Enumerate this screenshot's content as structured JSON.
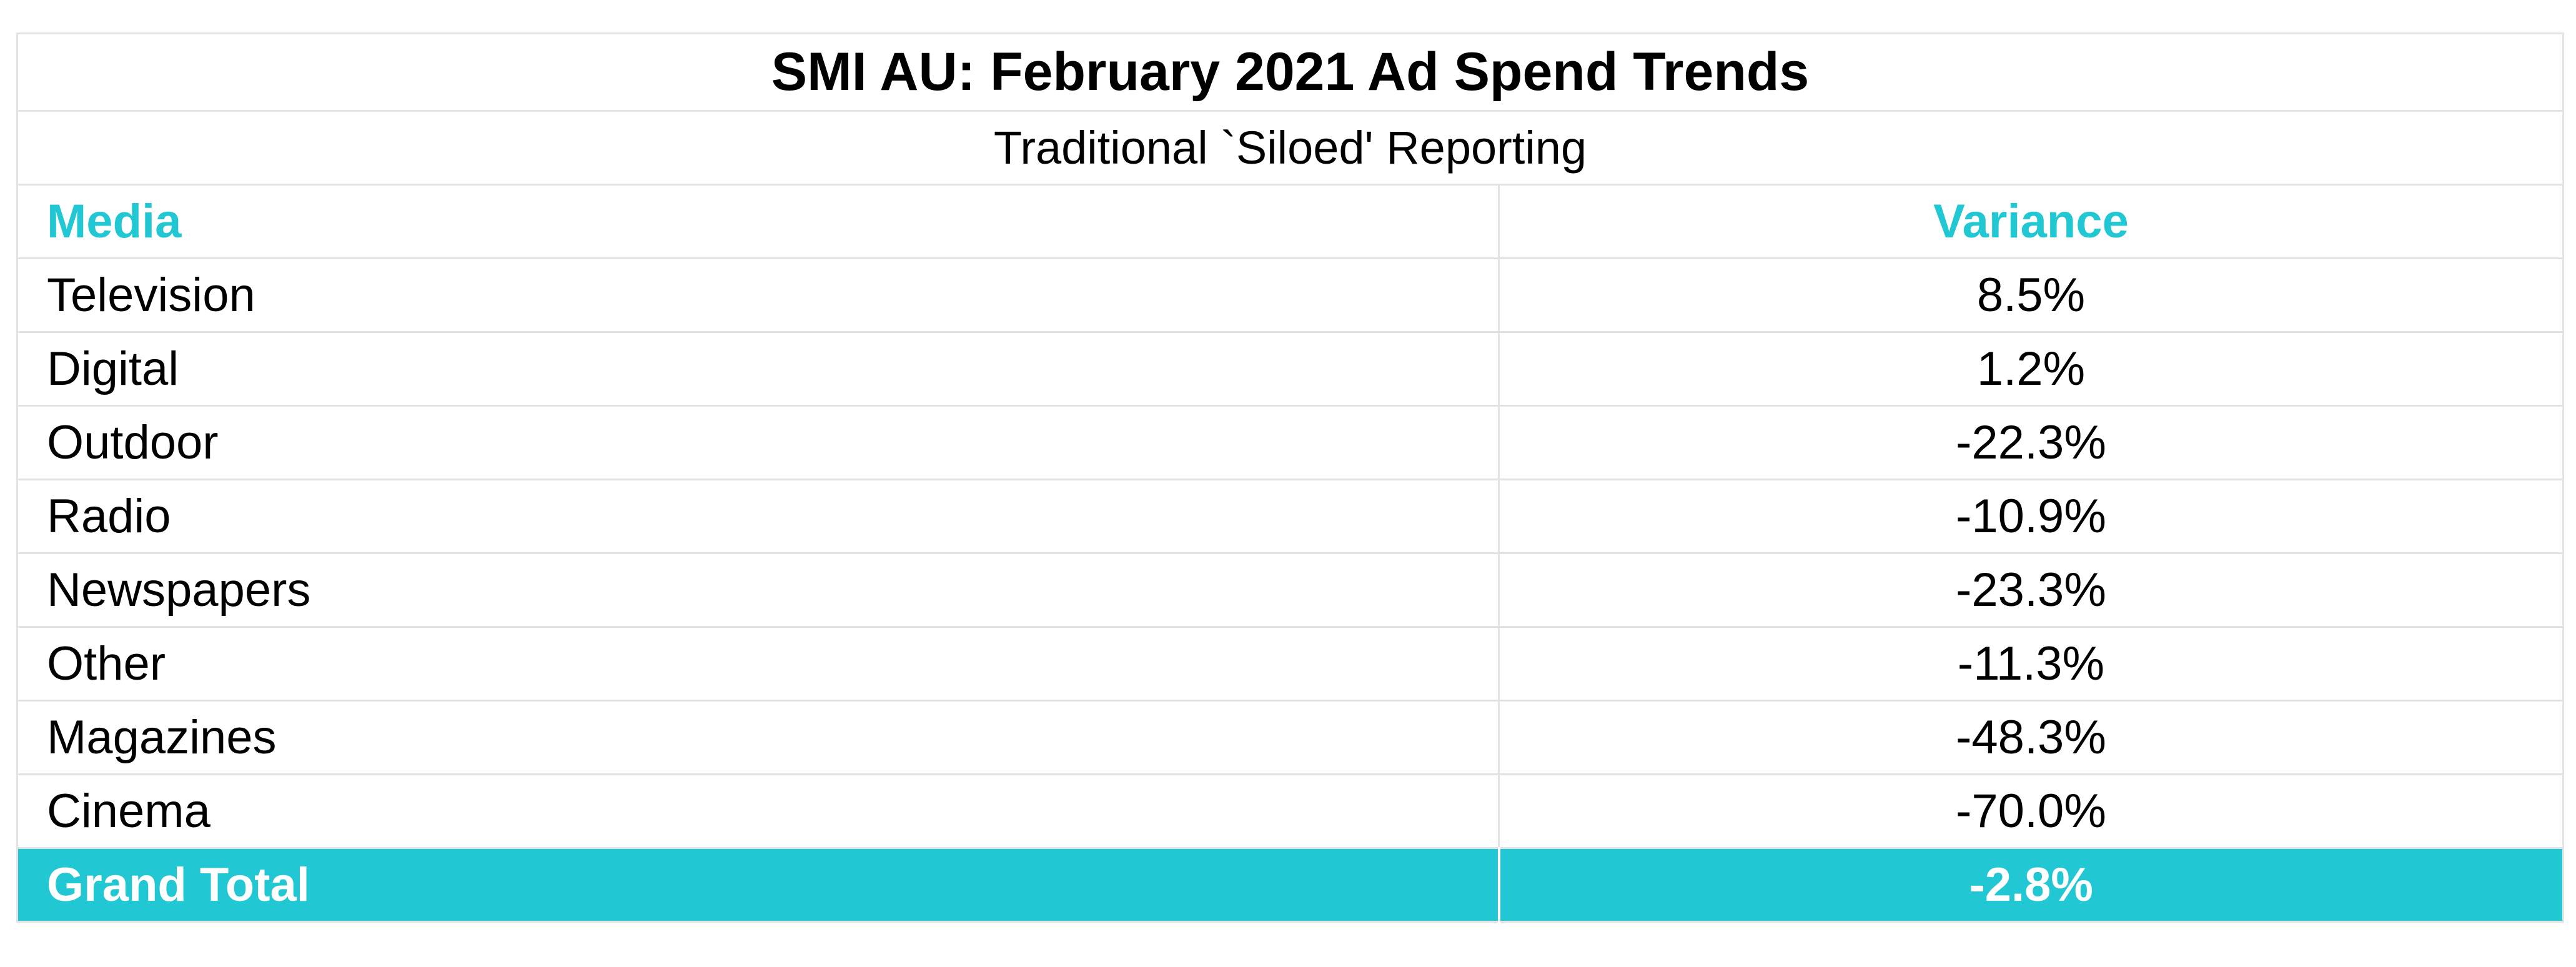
{
  "title": "SMI AU: February 2021 Ad Spend Trends",
  "subtitle": "Traditional `Siloed' Reporting",
  "columns": [
    "Media",
    "Variance"
  ],
  "rows": [
    {
      "media": "Television",
      "variance": "8.5%"
    },
    {
      "media": "Digital",
      "variance": "1.2%"
    },
    {
      "media": "Outdoor",
      "variance": "-22.3%"
    },
    {
      "media": "Radio",
      "variance": "-10.9%"
    },
    {
      "media": "Newspapers",
      "variance": "-23.3%"
    },
    {
      "media": "Other",
      "variance": "-11.3%"
    },
    {
      "media": "Magazines",
      "variance": "-48.3%"
    },
    {
      "media": "Cinema",
      "variance": "-70.0%"
    }
  ],
  "total": {
    "label": "Grand Total",
    "variance": "-2.8%"
  },
  "colors": {
    "accent": "#21c7d3",
    "grid": "#e3e3e3",
    "text": "#000000",
    "total_text": "#ffffff"
  }
}
